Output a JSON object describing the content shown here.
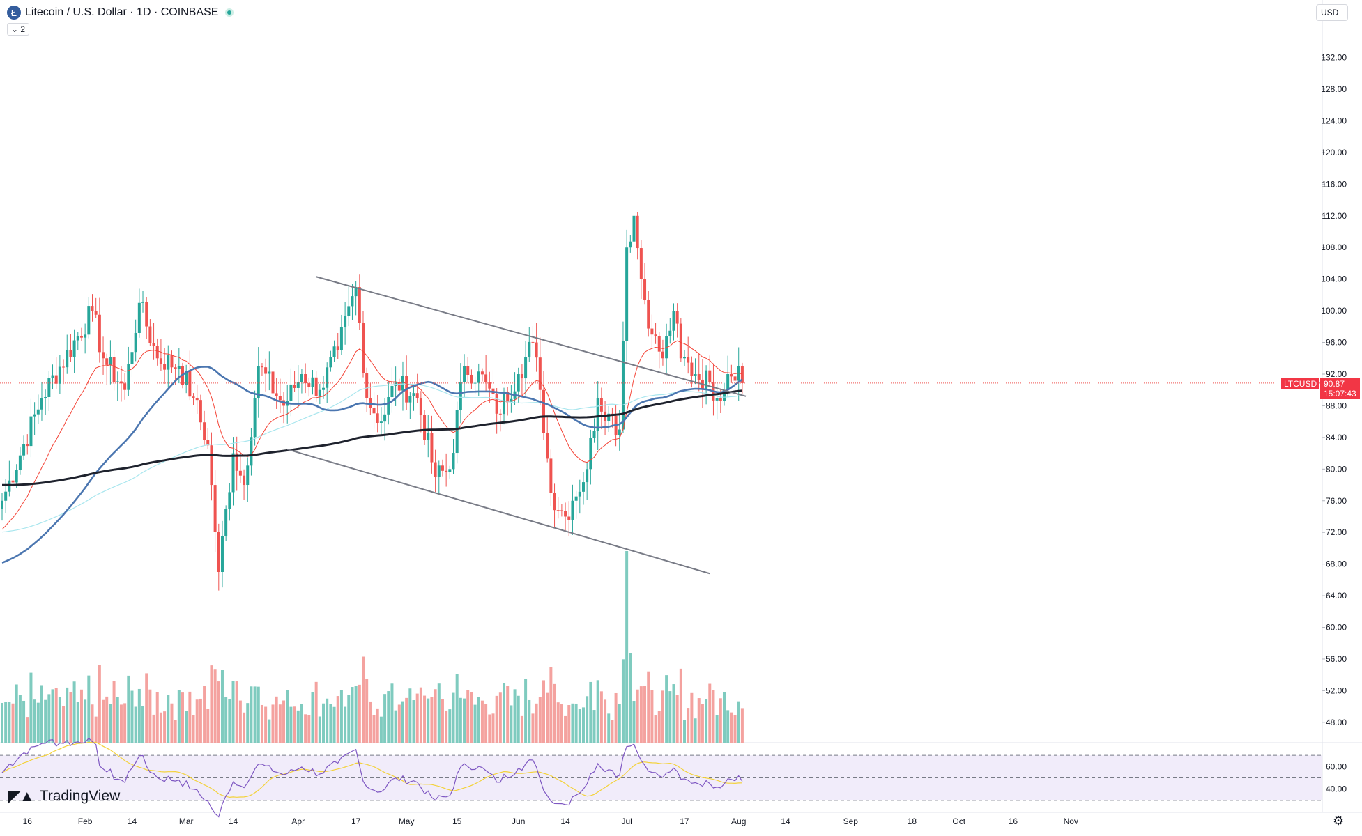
{
  "header": {
    "title": "Litecoin / U.S. Dollar · 1D · COINBASE",
    "logo_letter": "Ł",
    "indicator_toggle": "⌄ 2"
  },
  "currency": "USD",
  "brand": {
    "mark": "◤▲",
    "name": "TradingView"
  },
  "price_label": {
    "symbol": "LTCUSD",
    "price": "90.87",
    "countdown": "15:07:43"
  },
  "colors": {
    "up": "#26a69a",
    "down": "#ef5350",
    "up_vol": "#7fcbbf",
    "down_vol": "#f4a29f",
    "ema20": "#f44336",
    "sma50": "#4b76b0",
    "sma100": "#a8e6ee",
    "sma200": "#1e222d",
    "rsi": "#7e57c2",
    "rsi_ma": "#f3d23a",
    "rsi_band": "#f1ecfa"
  },
  "chart_data": {
    "type": "candlestick",
    "symbol": "LTCUSD",
    "y_axis": {
      "ticks": [
        48,
        52,
        56,
        60,
        64,
        68,
        72,
        76,
        80,
        84,
        88,
        92,
        96,
        100,
        104,
        108,
        112,
        116,
        120,
        124,
        128,
        132
      ],
      "range": [
        44,
        136
      ]
    },
    "x_axis_labels": [
      "16",
      "Feb",
      "14",
      "Mar",
      "14",
      "Apr",
      "17",
      "May",
      "15",
      "Jun",
      "14",
      "Jul",
      "17",
      "Aug",
      "14",
      "Sep",
      "18",
      "Oct",
      "16",
      "Nov"
    ],
    "x_axis_dates": [
      "2023-01-16",
      "2023-02-01",
      "2023-02-14",
      "2023-03-01",
      "2023-03-14",
      "2023-04-01",
      "2023-04-17",
      "2023-05-01",
      "2023-05-15",
      "2023-06-01",
      "2023-06-14",
      "2023-07-01",
      "2023-07-17",
      "2023-08-01",
      "2023-08-14",
      "2023-09-01",
      "2023-09-18",
      "2023-10-01",
      "2023-10-16",
      "2023-11-01"
    ],
    "first_candle_date": "2023-01-09",
    "last_close": 90.87,
    "key_points": [
      {
        "date": "2023-01-09",
        "value": 76
      },
      {
        "date": "2023-01-20",
        "value": 89
      },
      {
        "date": "2023-02-03",
        "value": 100
      },
      {
        "date": "2023-02-06",
        "value": 94
      },
      {
        "date": "2023-02-12",
        "value": 90
      },
      {
        "date": "2023-02-16",
        "value": 101
      },
      {
        "date": "2023-02-21",
        "value": 94
      },
      {
        "date": "2023-02-27",
        "value": 93
      },
      {
        "date": "2023-03-03",
        "value": 89
      },
      {
        "date": "2023-03-07",
        "value": 83
      },
      {
        "date": "2023-03-10",
        "value": 67
      },
      {
        "date": "2023-03-14",
        "value": 82
      },
      {
        "date": "2023-03-17",
        "value": 78
      },
      {
        "date": "2023-03-21",
        "value": 93
      },
      {
        "date": "2023-03-28",
        "value": 88
      },
      {
        "date": "2023-04-02",
        "value": 92
      },
      {
        "date": "2023-04-07",
        "value": 90
      },
      {
        "date": "2023-04-12",
        "value": 95
      },
      {
        "date": "2023-04-17",
        "value": 103
      },
      {
        "date": "2023-04-20",
        "value": 89
      },
      {
        "date": "2023-04-24",
        "value": 86
      },
      {
        "date": "2023-04-28",
        "value": 91
      },
      {
        "date": "2023-05-04",
        "value": 89
      },
      {
        "date": "2023-05-09",
        "value": 79
      },
      {
        "date": "2023-05-13",
        "value": 80
      },
      {
        "date": "2023-05-17",
        "value": 93
      },
      {
        "date": "2023-05-23",
        "value": 91
      },
      {
        "date": "2023-05-26",
        "value": 87
      },
      {
        "date": "2023-06-01",
        "value": 92
      },
      {
        "date": "2023-06-05",
        "value": 96
      },
      {
        "date": "2023-06-07",
        "value": 90
      },
      {
        "date": "2023-06-10",
        "value": 77
      },
      {
        "date": "2023-06-14",
        "value": 74
      },
      {
        "date": "2023-06-16",
        "value": 76
      },
      {
        "date": "2023-06-20",
        "value": 80
      },
      {
        "date": "2023-06-23",
        "value": 89
      },
      {
        "date": "2023-06-26",
        "value": 87
      },
      {
        "date": "2023-06-29",
        "value": 85
      },
      {
        "date": "2023-07-01",
        "value": 108
      },
      {
        "date": "2023-07-03",
        "value": 112
      },
      {
        "date": "2023-07-05",
        "value": 104
      },
      {
        "date": "2023-07-08",
        "value": 97
      },
      {
        "date": "2023-07-11",
        "value": 94
      },
      {
        "date": "2023-07-14",
        "value": 100
      },
      {
        "date": "2023-07-16",
        "value": 94
      },
      {
        "date": "2023-07-20",
        "value": 92
      },
      {
        "date": "2023-07-24",
        "value": 91
      },
      {
        "date": "2023-07-26",
        "value": 89
      },
      {
        "date": "2023-07-29",
        "value": 92
      },
      {
        "date": "2023-08-01",
        "value": 93
      },
      {
        "date": "2023-08-02",
        "value": 90.87
      }
    ],
    "trendlines": [
      {
        "from": [
          "2023-04-06",
          104.3
        ],
        "to": [
          "2023-08-03",
          89.2
        ]
      },
      {
        "from": [
          "2023-03-29",
          82.5
        ],
        "to": [
          "2023-07-24",
          66.8
        ]
      }
    ],
    "moving_averages": [
      "EMA 20",
      "SMA 50",
      "SMA 100",
      "SMA 200"
    ],
    "volume": {
      "spike_date": "2023-07-01"
    },
    "rsi": {
      "ticks": [
        40.0,
        60.0
      ],
      "bands": [
        70,
        50,
        30
      ]
    }
  }
}
